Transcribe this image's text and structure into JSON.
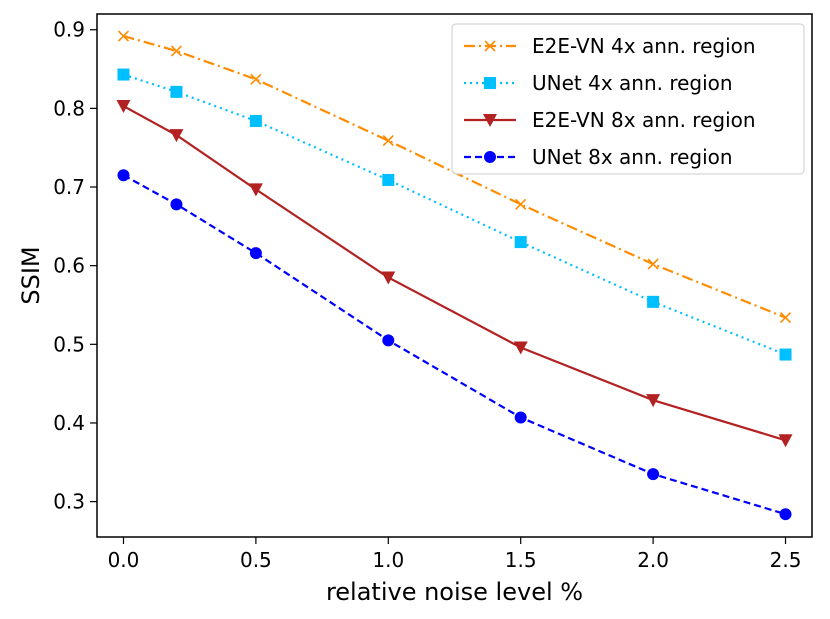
{
  "chart_data": {
    "type": "line",
    "title": "",
    "xlabel": "relative noise level %",
    "ylabel": "SSIM",
    "x": [
      0.0,
      0.2,
      0.5,
      1.0,
      1.5,
      2.0,
      2.5
    ],
    "xlim": [
      -0.1,
      2.6
    ],
    "ylim": [
      0.255,
      0.92
    ],
    "xticks": [
      0.0,
      0.5,
      1.0,
      1.5,
      2.0,
      2.5
    ],
    "xtick_labels": [
      "0.0",
      "0.5",
      "1.0",
      "1.5",
      "2.0",
      "2.5"
    ],
    "yticks": [
      0.3,
      0.4,
      0.5,
      0.6,
      0.7,
      0.8,
      0.9
    ],
    "ytick_labels": [
      "0.3",
      "0.4",
      "0.5",
      "0.6",
      "0.7",
      "0.8",
      "0.9"
    ],
    "grid": false,
    "legend_position": "top-right",
    "series": [
      {
        "name": "E2E-VN 4x ann. region",
        "values": [
          0.892,
          0.873,
          0.837,
          0.759,
          0.678,
          0.602,
          0.534
        ],
        "color": "#ff8c00",
        "line_style": "dashdot",
        "marker": "x"
      },
      {
        "name": "UNet 4x ann. region",
        "values": [
          0.843,
          0.821,
          0.784,
          0.709,
          0.63,
          0.554,
          0.487
        ],
        "color": "#00bfff",
        "line_style": "dotted",
        "marker": "square"
      },
      {
        "name": "E2E-VN 8x ann. region",
        "values": [
          0.803,
          0.766,
          0.697,
          0.585,
          0.496,
          0.429,
          0.378
        ],
        "color": "#b22222",
        "line_style": "solid",
        "marker": "triangle-down"
      },
      {
        "name": "UNet 8x ann. region",
        "values": [
          0.715,
          0.678,
          0.616,
          0.505,
          0.407,
          0.335,
          0.284
        ],
        "color": "#0000ff",
        "line_style": "dashed",
        "marker": "circle"
      }
    ]
  }
}
